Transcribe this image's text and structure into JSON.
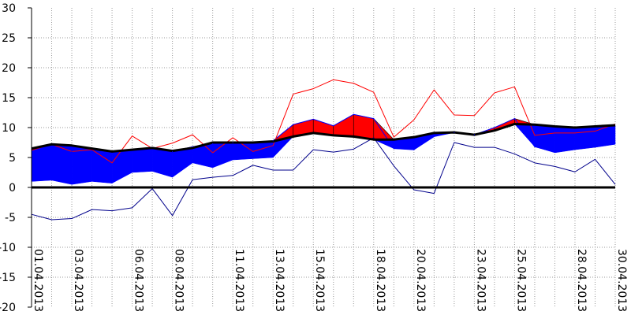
{
  "chart_data": {
    "type": "area",
    "title": "",
    "xlabel": "",
    "ylabel": "",
    "ylim": [
      -20,
      30
    ],
    "y_ticks": [
      30,
      25,
      20,
      15,
      10,
      5,
      0,
      -5,
      -10,
      -15,
      -20
    ],
    "grid": true,
    "grid_style": "dotted",
    "legend": "none",
    "x": [
      "01.04.2013",
      "02.04.2013",
      "03.04.2013",
      "04.04.2013",
      "05.04.2013",
      "06.04.2013",
      "07.04.2013",
      "08.04.2013",
      "09.04.2013",
      "10.04.2013",
      "11.04.2013",
      "12.04.2013",
      "13.04.2013",
      "14.04.2013",
      "15.04.2013",
      "16.04.2013",
      "17.04.2013",
      "18.04.2013",
      "19.04.2013",
      "20.04.2013",
      "21.04.2013",
      "22.04.2013",
      "23.04.2013",
      "24.04.2013",
      "25.04.2013",
      "26.04.2013",
      "27.04.2013",
      "28.04.2013",
      "29.04.2013",
      "30.04.2013"
    ],
    "x_tick_labels": [
      "01.04.2013",
      "03.04.2013",
      "06.04.2013",
      "08.04.2013",
      "11.04.2013",
      "13.04.2013",
      "15.04.2013",
      "18.04.2013",
      "20.04.2013",
      "23.04.2013",
      "25.04.2013",
      "28.04.2013",
      "30.04.2013"
    ],
    "series": [
      {
        "role": "mean",
        "color": "#000000",
        "values": [
          6.5,
          7.2,
          7.0,
          6.5,
          6.0,
          6.3,
          6.6,
          6.1,
          6.6,
          7.5,
          7.5,
          7.5,
          7.7,
          8.5,
          9.1,
          8.7,
          8.5,
          8.0,
          8.0,
          8.4,
          9.1,
          9.2,
          8.8,
          9.5,
          10.6,
          10.5,
          10.2,
          10.0,
          10.2,
          10.4
        ]
      },
      {
        "role": "daily_mean",
        "color": "#0000ff",
        "values": [
          6.3,
          6.8,
          6.0,
          5.8,
          4.6,
          5.7,
          6.3,
          6.0,
          6.8,
          7.3,
          7.5,
          7.0,
          7.8,
          10.5,
          11.4,
          10.3,
          12.2,
          11.5,
          6.5,
          6.3,
          8.5,
          9.2,
          8.8,
          10.0,
          11.5,
          6.8,
          5.9,
          6.5,
          6.9,
          7.4
        ]
      },
      {
        "role": "maximum",
        "color": "#ff0000",
        "values": [
          6.2,
          7.2,
          6.0,
          6.3,
          4.1,
          8.6,
          6.5,
          7.4,
          8.8,
          5.8,
          8.3,
          6.0,
          7.0,
          15.6,
          16.5,
          18.0,
          17.4,
          15.9,
          8.4,
          11.3,
          16.3,
          12.1,
          12.0,
          15.8,
          16.8,
          8.7,
          9.1,
          9.1,
          9.4,
          10.6
        ]
      },
      {
        "role": "minimum",
        "color": "#00008b",
        "values": [
          -4.5,
          -5.4,
          -5.2,
          -3.7,
          -3.9,
          -3.4,
          -0.2,
          -4.7,
          1.3,
          1.7,
          2.0,
          3.7,
          2.9,
          2.9,
          6.3,
          5.9,
          6.4,
          8.3,
          3.6,
          -0.4,
          -1.0,
          7.5,
          6.7,
          6.7,
          5.6,
          4.1,
          3.5,
          2.6,
          4.7,
          0.5
        ]
      },
      {
        "role": "norm_low",
        "color": "#0000ff",
        "values": [
          1.0,
          1.2,
          0.5,
          1.0,
          0.7,
          2.5,
          2.7,
          1.7,
          4.1,
          3.3,
          4.6,
          4.8,
          5.0,
          null,
          null,
          null,
          null,
          null,
          null,
          null,
          null,
          null,
          null,
          null,
          null,
          6.8,
          5.8,
          6.3,
          6.7,
          7.2
        ]
      }
    ]
  }
}
